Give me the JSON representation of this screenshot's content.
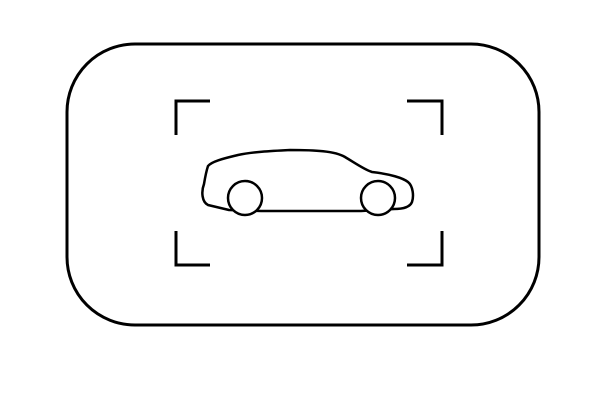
{
  "icon": {
    "name": "car-detection-icon",
    "subject": "car-icon",
    "stroke_color": "#000000",
    "background_color": "#ffffff"
  }
}
